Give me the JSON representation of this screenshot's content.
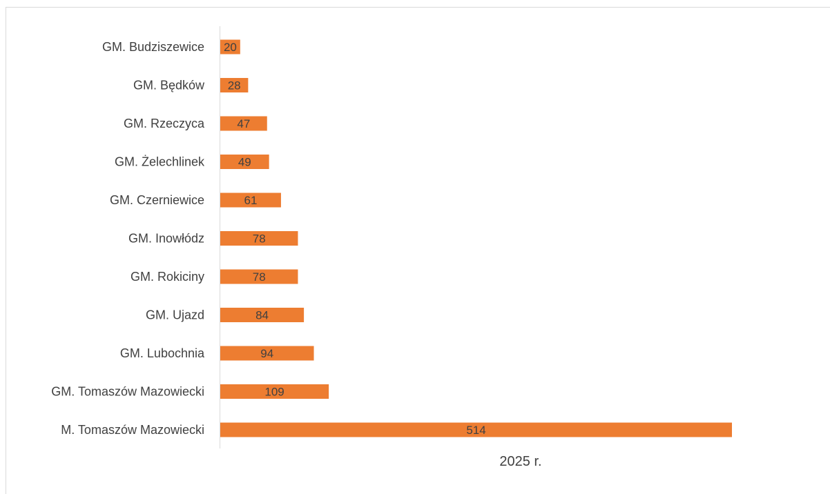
{
  "chart_data": {
    "type": "bar",
    "orientation": "horizontal",
    "categories": [
      "GM. Budziszewice",
      "GM. Będków",
      "GM. Rzeczyca",
      "GM. Żelechlinek",
      "GM. Czerniewice",
      "GM. Inowłódz",
      "GM. Rokiciny",
      "GM. Ujazd",
      "GM. Lubochnia",
      "GM. Tomaszów Mazowiecki",
      "M. Tomaszów Mazowiecki"
    ],
    "series": [
      {
        "name": "2025 r.",
        "values": [
          20,
          28,
          47,
          49,
          61,
          78,
          78,
          84,
          94,
          109,
          514
        ],
        "color": "#ED7D31"
      }
    ],
    "xlabel": "2025 r.",
    "ylabel": "",
    "xlim": [
      0,
      514
    ],
    "grid": false,
    "data_labels": true,
    "legend": "none"
  }
}
